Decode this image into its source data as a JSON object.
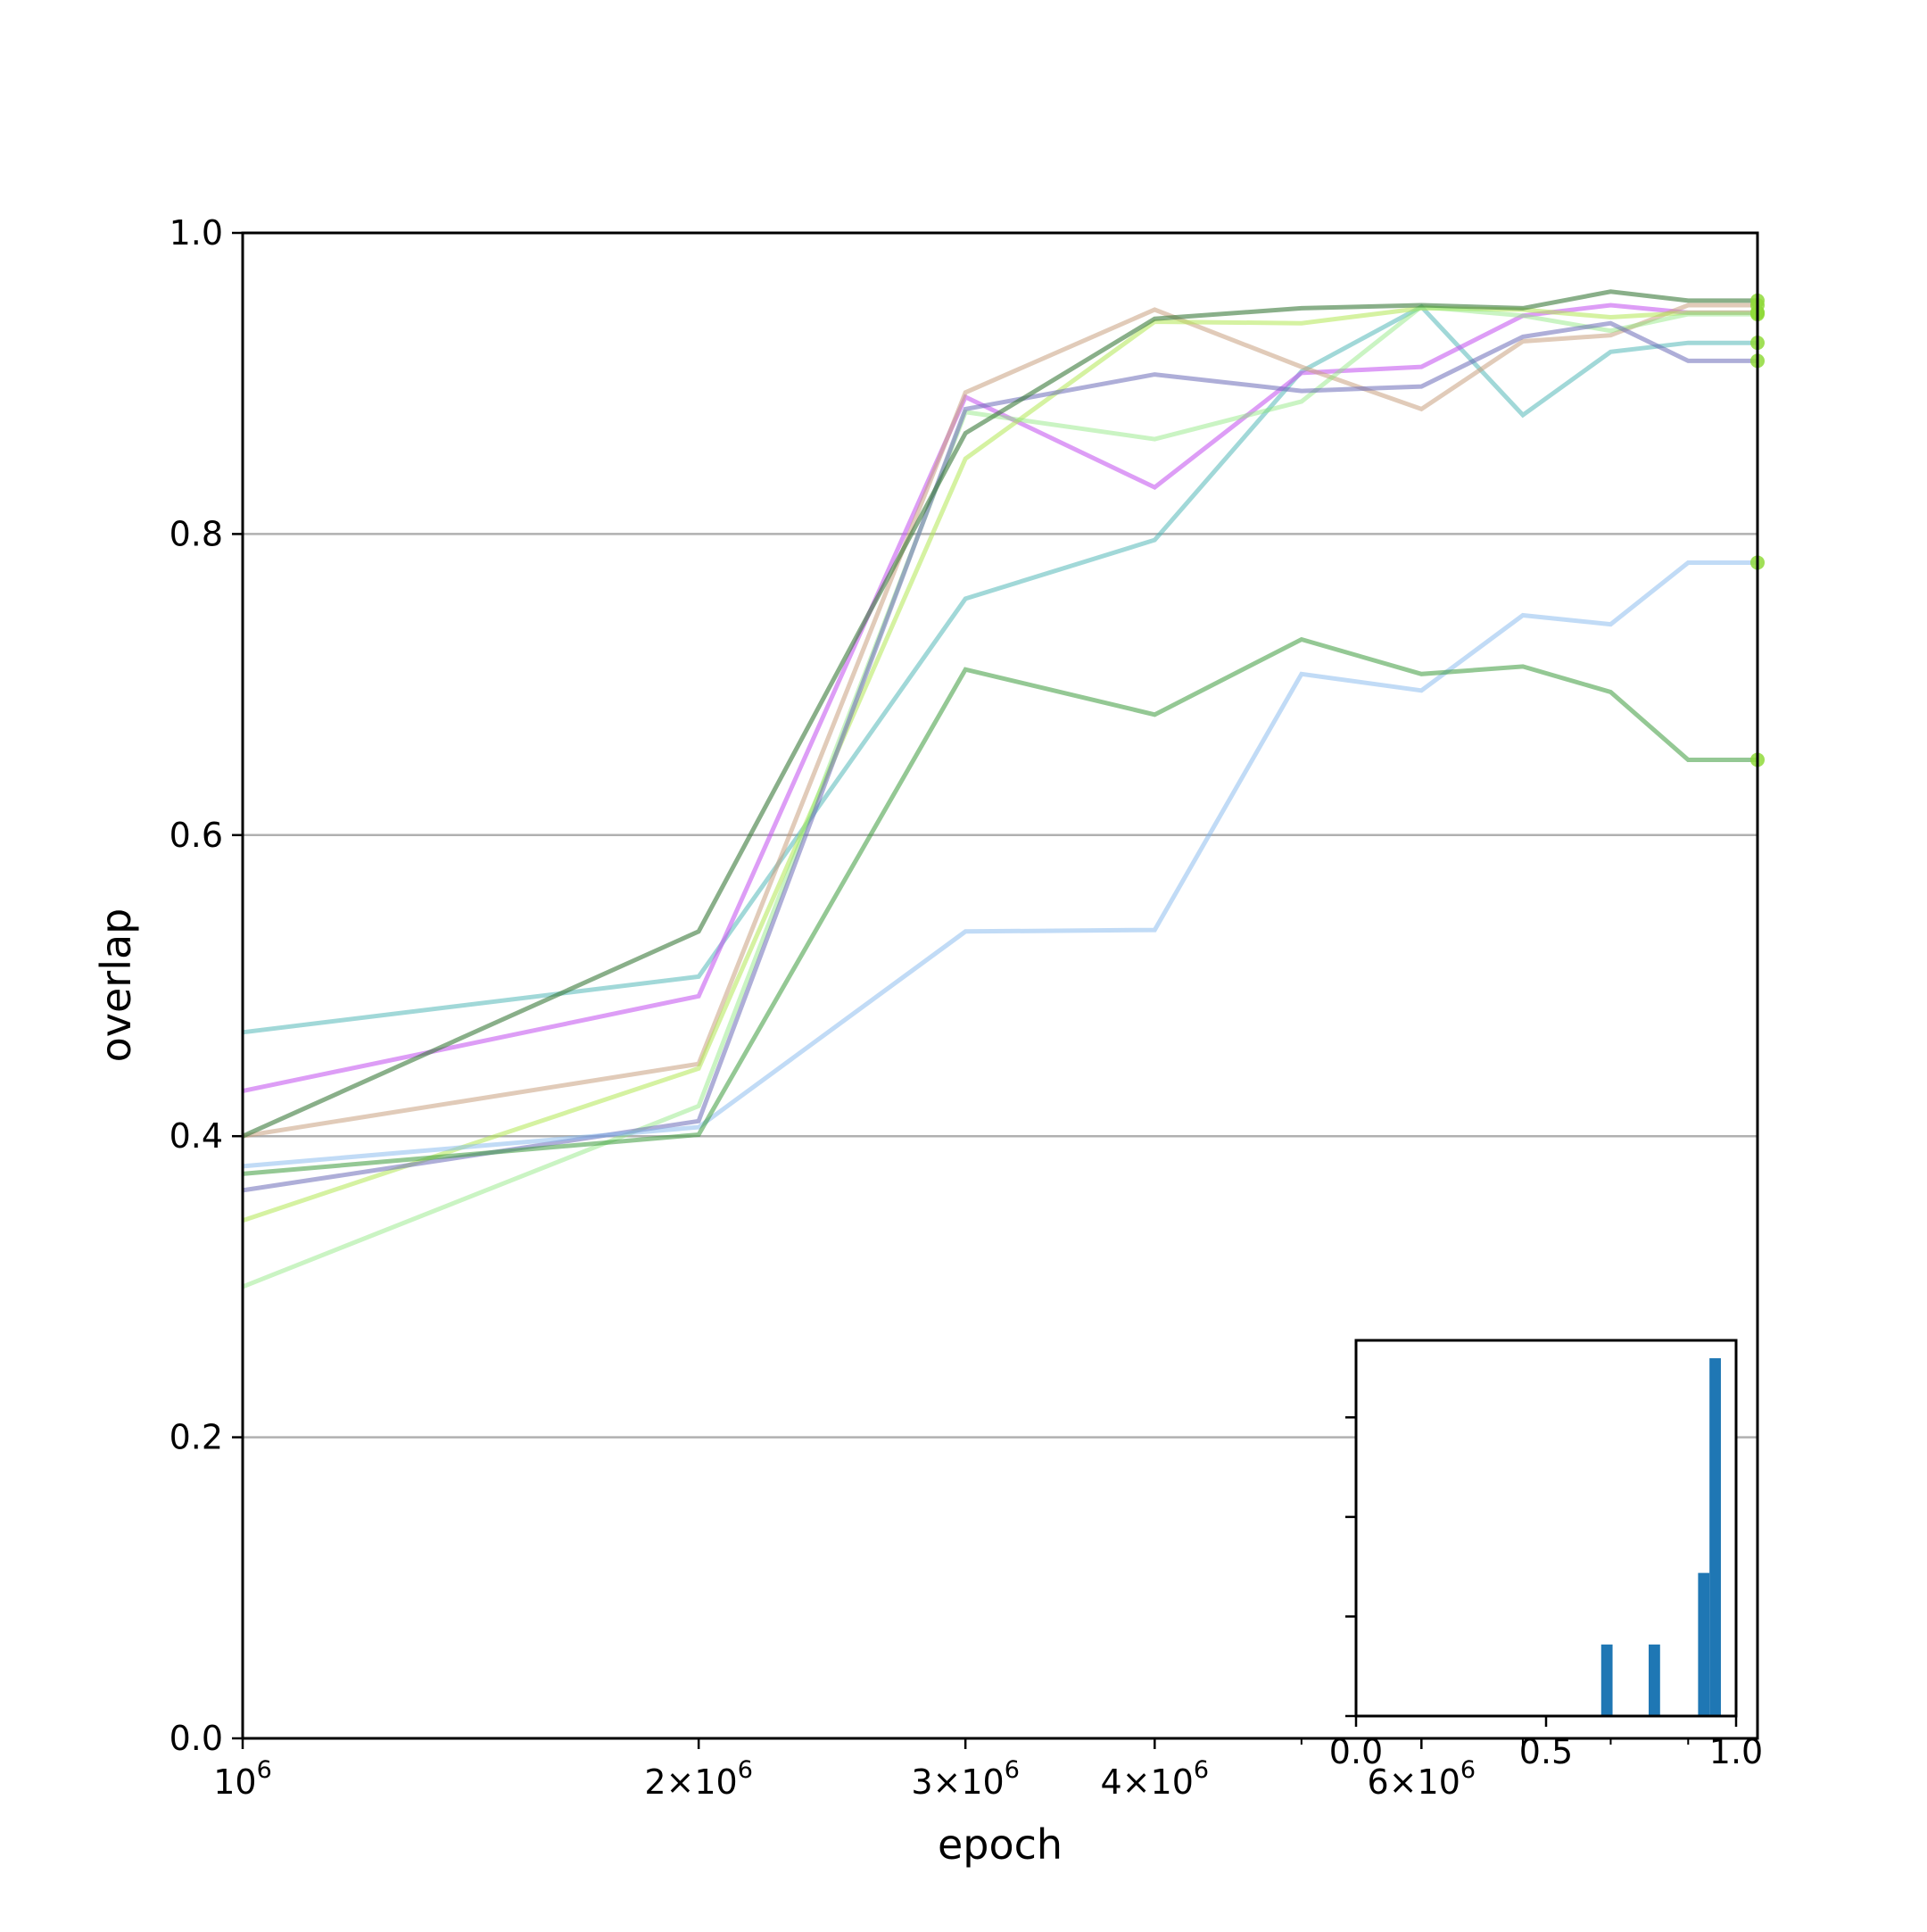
{
  "chart_data": [
    {
      "type": "line",
      "title": "",
      "xlabel": "epoch",
      "ylabel": "overlap",
      "xscale": "log",
      "xlim": [
        1000000,
        10000000
      ],
      "ylim": [
        0,
        1
      ],
      "grid": "horizontal",
      "legend": "none",
      "x": [
        1000000,
        2000000,
        3000000,
        4000000,
        5000000,
        6000000,
        7000000,
        8000000,
        9000000,
        10000000
      ],
      "x_tick_labels": [
        {
          "base": "10",
          "exp": "6",
          "value": 1000000
        },
        {
          "base": "2×10",
          "exp": "6",
          "value": 2000000
        },
        {
          "base": "3×10",
          "exp": "6",
          "value": 3000000
        },
        {
          "base": "4×10",
          "exp": "6",
          "value": 4000000
        },
        {
          "base": "6×10",
          "exp": "6",
          "value": 6000000
        }
      ],
      "y_tick_labels": [
        "0.0",
        "0.2",
        "0.4",
        "0.6",
        "0.8",
        "1.0"
      ],
      "y_ticks": [
        0,
        0.2,
        0.4,
        0.6,
        0.8,
        1.0
      ],
      "end_marker_color": "#8fd93a",
      "series": [
        {
          "color": "#54b8b8",
          "opacity": 0.55,
          "values": [
            0.469,
            0.506,
            0.757,
            0.796,
            0.908,
            0.951,
            0.879,
            0.921,
            0.927,
            0.927
          ]
        },
        {
          "color": "#c65cf0",
          "opacity": 0.6,
          "values": [
            0.43,
            0.493,
            0.891,
            0.831,
            0.907,
            0.911,
            0.945,
            0.952,
            0.947,
            0.947
          ]
        },
        {
          "color": "#c8a080",
          "opacity": 0.55,
          "values": [
            0.4,
            0.448,
            0.894,
            0.949,
            0.911,
            0.883,
            0.928,
            0.932,
            0.952,
            0.952
          ]
        },
        {
          "color": "#b3e854",
          "opacity": 0.55,
          "values": [
            0.344,
            0.445,
            0.85,
            0.941,
            0.94,
            0.95,
            0.949,
            0.944,
            0.947,
            0.947
          ]
        },
        {
          "color": "#8ae67a",
          "opacity": 0.45,
          "values": [
            0.3,
            0.42,
            0.881,
            0.863,
            0.888,
            0.951,
            0.945,
            0.935,
            0.946,
            0.946
          ]
        },
        {
          "color": "#6b6bb8",
          "opacity": 0.55,
          "values": [
            0.364,
            0.41,
            0.883,
            0.906,
            0.895,
            0.898,
            0.931,
            0.94,
            0.915,
            0.915
          ]
        },
        {
          "color": "#84b8ee",
          "opacity": 0.5,
          "values": [
            0.38,
            0.406,
            0.536,
            0.537,
            0.707,
            0.696,
            0.746,
            0.74,
            0.781,
            0.781
          ]
        },
        {
          "color": "#3c9a3c",
          "opacity": 0.55,
          "values": [
            0.375,
            0.401,
            0.71,
            0.68,
            0.73,
            0.707,
            0.712,
            0.695,
            0.65,
            0.65
          ]
        },
        {
          "color": "#3a7a3a",
          "opacity": 0.6,
          "values": [
            0.4,
            0.536,
            0.867,
            0.943,
            0.95,
            0.952,
            0.95,
            0.961,
            0.955,
            0.955
          ]
        }
      ]
    },
    {
      "type": "bar",
      "title": "",
      "xlabel": "",
      "ylabel": "",
      "xlim": [
        0,
        1
      ],
      "x_tick_labels": [
        "0.0",
        "0.5",
        "1.0"
      ],
      "x_ticks": [
        0,
        0.5,
        1.0
      ],
      "y_ticks_count": 3,
      "color": "#1f77b4",
      "bins": [
        {
          "start": 0.645,
          "end": 0.675,
          "count": 1
        },
        {
          "start": 0.77,
          "end": 0.8,
          "count": 1
        },
        {
          "start": 0.9,
          "end": 0.93,
          "count": 2
        },
        {
          "start": 0.93,
          "end": 0.96,
          "count": 5
        }
      ]
    }
  ]
}
